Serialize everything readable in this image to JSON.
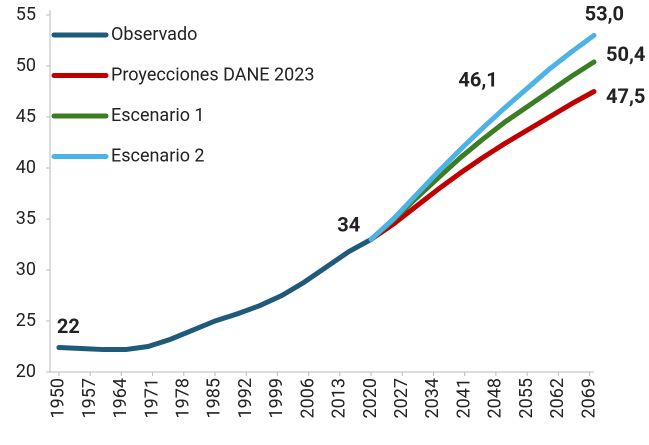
{
  "chart_data": {
    "type": "line",
    "xlim": [
      1948,
      2070
    ],
    "xticks": [
      1950,
      1957,
      1964,
      1971,
      1978,
      1985,
      1992,
      1999,
      2006,
      2013,
      2020,
      2027,
      2034,
      2041,
      2048,
      2055,
      2062,
      2069
    ],
    "ylim": [
      20,
      55
    ],
    "yticks": [
      20,
      25,
      30,
      35,
      40,
      45,
      50,
      55
    ],
    "grid": false,
    "legend": "upper left",
    "series": [
      {
        "name": "Observado",
        "color": "#1f5a7a",
        "x": [
          1950,
          1955,
          1960,
          1965,
          1970,
          1975,
          1980,
          1985,
          1990,
          1995,
          2000,
          2005,
          2010,
          2015,
          2020
        ],
        "values": [
          22.4,
          22.3,
          22.2,
          22.2,
          22.5,
          23.2,
          24.1,
          25.0,
          25.7,
          26.5,
          27.5,
          28.8,
          30.3,
          31.8,
          33.0
        ],
        "value_labels": [
          "22",
          null,
          null,
          null,
          null,
          null,
          null,
          null,
          null,
          null,
          null,
          null,
          null,
          null,
          null
        ]
      },
      {
        "name": "Proyecciones DANE 2023",
        "color": "#c00000",
        "x": [
          2020,
          2025,
          2030,
          2035,
          2040,
          2045,
          2050,
          2055,
          2060,
          2065,
          2070
        ],
        "values": [
          33.0,
          34.5,
          36.2,
          37.9,
          39.5,
          41.0,
          42.4,
          43.7,
          45.0,
          46.3,
          47.5
        ],
        "value_labels": [
          null,
          null,
          null,
          null,
          null,
          null,
          null,
          null,
          null,
          null,
          "47,5"
        ]
      },
      {
        "name": "Escenario 1",
        "color": "#3a7d22",
        "x": [
          2020,
          2025,
          2030,
          2035,
          2040,
          2045,
          2050,
          2055,
          2060,
          2065,
          2070
        ],
        "values": [
          33.0,
          34.9,
          37.0,
          39.0,
          41.0,
          42.8,
          44.5,
          46.0,
          47.5,
          49.0,
          50.4
        ],
        "value_labels": [
          null,
          null,
          null,
          null,
          null,
          null,
          null,
          null,
          null,
          null,
          "50,4"
        ]
      },
      {
        "name": "Escenario 2",
        "color": "#4db3e6",
        "x": [
          2020,
          2025,
          2030,
          2035,
          2040,
          2045,
          2050,
          2055,
          2060,
          2065,
          2070
        ],
        "values": [
          33.0,
          35.0,
          37.3,
          39.6,
          41.8,
          43.9,
          45.9,
          47.8,
          49.7,
          51.4,
          53.0
        ],
        "value_labels": [
          null,
          null,
          null,
          null,
          null,
          null,
          null,
          null,
          null,
          null,
          "53,0"
        ]
      }
    ],
    "annotations": [
      {
        "text": "34",
        "color": "#4db3e6"
      },
      {
        "text": "46,1",
        "color": "#3a7d22"
      }
    ]
  }
}
